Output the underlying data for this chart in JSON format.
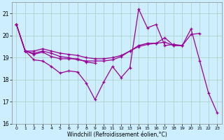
{
  "xlabel": "Windchill (Refroidissement éolien,°C)",
  "bg_color": "#cceeff",
  "line_color": "#990099",
  "grid_color": "#aaccbb",
  "xlim": [
    -0.5,
    23.5
  ],
  "ylim": [
    16,
    21.5
  ],
  "yticks": [
    16,
    17,
    18,
    19,
    20,
    21
  ],
  "xticks": [
    0,
    1,
    2,
    3,
    4,
    5,
    6,
    7,
    8,
    9,
    10,
    11,
    12,
    13,
    14,
    15,
    16,
    17,
    18,
    19,
    20,
    21,
    22,
    23
  ],
  "series": [
    [
      20.5,
      19.3,
      18.9,
      18.85,
      18.6,
      18.3,
      18.4,
      18.35,
      17.85,
      17.1,
      17.9,
      18.6,
      18.1,
      18.55,
      21.2,
      20.35,
      20.5,
      19.55,
      19.6,
      19.55,
      20.3,
      18.85,
      17.4,
      16.5
    ],
    [
      20.5,
      19.3,
      19.15,
      19.25,
      19.05,
      18.95,
      18.95,
      18.95,
      18.8,
      18.75,
      null,
      null,
      null,
      null,
      null,
      null,
      null,
      null,
      null,
      null,
      null,
      null,
      null,
      null
    ],
    [
      20.5,
      19.3,
      19.2,
      19.3,
      19.2,
      19.05,
      19.0,
      18.9,
      18.85,
      18.85,
      18.85,
      18.9,
      19.05,
      19.3,
      19.55,
      19.65,
      19.65,
      19.9,
      19.55,
      19.55,
      20.05,
      20.1,
      null,
      null
    ],
    [
      20.5,
      19.3,
      19.3,
      19.4,
      19.3,
      19.2,
      19.15,
      19.1,
      19.0,
      18.95,
      18.95,
      19.0,
      19.1,
      19.3,
      19.5,
      19.6,
      19.65,
      19.7,
      19.55,
      19.55,
      null,
      null,
      null,
      null
    ]
  ]
}
